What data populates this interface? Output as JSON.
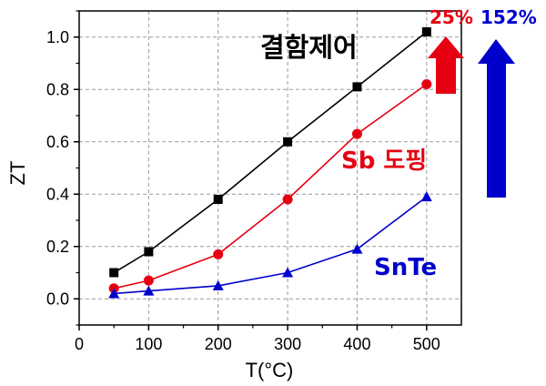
{
  "chart_data": {
    "type": "line",
    "xlabel": "T(°C)",
    "ylabel": "ZT",
    "xlim": [
      0,
      550
    ],
    "ylim": [
      -0.1,
      1.1
    ],
    "xticks": [
      0,
      100,
      200,
      300,
      400,
      500
    ],
    "yticks": [
      0.0,
      0.2,
      0.4,
      0.6,
      0.8,
      1.0
    ],
    "grid": true,
    "series": [
      {
        "name": "결함제어",
        "color": "#000000",
        "marker": "square",
        "x": [
          50,
          100,
          200,
          300,
          400,
          500
        ],
        "y": [
          0.1,
          0.18,
          0.38,
          0.6,
          0.81,
          1.02
        ]
      },
      {
        "name": "Sb 도핑",
        "color": "#e60012",
        "marker": "circle",
        "x": [
          50,
          100,
          200,
          300,
          400,
          500
        ],
        "y": [
          0.04,
          0.07,
          0.17,
          0.38,
          0.63,
          0.82
        ]
      },
      {
        "name": "SnTe",
        "color": "#0000cc",
        "marker": "triangle",
        "x": [
          50,
          100,
          200,
          300,
          400,
          500
        ],
        "y": [
          0.02,
          0.03,
          0.05,
          0.1,
          0.19,
          0.39
        ]
      }
    ],
    "annotations": [
      {
        "text": "25%",
        "color": "#e60012"
      },
      {
        "text": "152%",
        "color": "#0000cc"
      }
    ]
  }
}
